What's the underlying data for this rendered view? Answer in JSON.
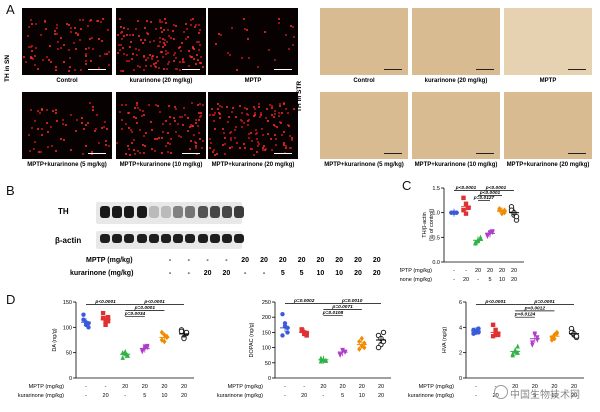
{
  "panel_letters": {
    "a": "A",
    "b": "B",
    "c": "C",
    "d": "D"
  },
  "panelA": {
    "sn_label": "TH in SN",
    "str_label": "TH in STR",
    "sn_captions": [
      "Control",
      "kurarinone (20 mg/kg)",
      "MPTP",
      "MPTP+kurarinone (5 mg/kg)",
      "MPTP+kurarinone (10 mg/kg)",
      "MPTP+kurarinone (20 mg/kg)"
    ],
    "str_captions": [
      "Control",
      "kurarinone (20 mg/kg)",
      "MPTP",
      "MPTP+kurarinone (5 mg/kg)",
      "MPTP+kurarinone (10 mg/kg)",
      "MPTP+kurarinone (20 mg/kg)"
    ]
  },
  "panelB": {
    "bands": [
      "TH",
      "β-actin"
    ],
    "row_labels": [
      "MPTP (mg/kg)",
      "kurarinone (mg/kg)"
    ],
    "mptp": [
      "-",
      "-",
      "-",
      "-",
      "20",
      "20",
      "20",
      "20",
      "20",
      "20",
      "20",
      "20"
    ],
    "kurarinone": [
      "-",
      "-",
      "20",
      "20",
      "-",
      "-",
      "5",
      "5",
      "10",
      "10",
      "20",
      "20"
    ],
    "th_intensity": [
      1,
      1,
      1,
      1,
      0.3,
      0.3,
      0.55,
      0.6,
      0.75,
      0.8,
      0.8,
      0.85
    ]
  },
  "chart_data": [
    {
      "type": "scatter",
      "panel": "C",
      "ylabel": "TH/β-actin\n(% of control)",
      "ylim": [
        0,
        1.5
      ],
      "yticks": [
        "0.0",
        "0.5",
        "1.0",
        "1.5"
      ],
      "mptp_row": [
        "-",
        "-",
        "20",
        "20",
        "20",
        "20"
      ],
      "kurarinone_row": [
        "-",
        "20",
        "-",
        "5",
        "10",
        "20"
      ],
      "groups": [
        {
          "color": "#3b5bdb",
          "marker": "circle",
          "mean": 1.0,
          "points": [
            1.0,
            1.0,
            1.0,
            1.0,
            1.0,
            1.0
          ]
        },
        {
          "color": "#e03131",
          "marker": "square",
          "mean": 1.12,
          "points": [
            1.3,
            1.18,
            1.1,
            1.05,
            0.98,
            1.1
          ]
        },
        {
          "color": "#2fb344",
          "marker": "triangle",
          "mean": 0.44,
          "points": [
            0.4,
            0.45,
            0.5,
            0.38,
            0.43,
            0.47
          ]
        },
        {
          "color": "#ae3ec9",
          "marker": "triangle-down",
          "mean": 0.58,
          "points": [
            0.55,
            0.6,
            0.62,
            0.52,
            0.58,
            0.6
          ]
        },
        {
          "color": "#f08c00",
          "marker": "diamond",
          "mean": 1.03,
          "points": [
            1.05,
            0.98,
            1.0,
            1.08,
            1.02,
            1.05
          ]
        },
        {
          "color": "#222222",
          "marker": "circle-open",
          "mean": 1.0,
          "points": [
            1.12,
            0.95,
            0.85,
            1.05,
            1.0,
            0.92
          ]
        }
      ],
      "annotations": [
        {
          "text": "p<0.0001",
          "from": 0,
          "to": 2,
          "level": 1.45
        },
        {
          "text": "p<0.0001",
          "from": 2,
          "to": 5,
          "level": 1.45
        },
        {
          "text": "p<0.0001",
          "from": 2,
          "to": 4,
          "level": 1.35
        },
        {
          "text": "p=0.0127",
          "from": 2,
          "to": 3,
          "level": 1.25
        }
      ]
    },
    {
      "type": "scatter",
      "panel": "D1",
      "ylabel": "DA (ng/g)",
      "ylim": [
        0,
        150
      ],
      "yticks": [
        "0",
        "50",
        "100",
        "150"
      ],
      "mptp_row": [
        "-",
        "-",
        "20",
        "20",
        "20",
        "20"
      ],
      "kurarinone_row": [
        "-",
        "20",
        "-",
        "5",
        "10",
        "20"
      ],
      "groups": [
        {
          "color": "#3b5bdb",
          "marker": "circle",
          "mean": 110,
          "points": [
            125,
            105,
            100,
            115,
            110,
            108
          ]
        },
        {
          "color": "#e03131",
          "marker": "square",
          "mean": 115,
          "points": [
            128,
            110,
            112,
            118,
            105,
            120
          ]
        },
        {
          "color": "#2fb344",
          "marker": "triangle",
          "mean": 47,
          "points": [
            40,
            52,
            45,
            50,
            48,
            44
          ]
        },
        {
          "color": "#ae3ec9",
          "marker": "triangle-down",
          "mean": 58,
          "points": [
            55,
            62,
            60,
            52,
            58,
            63
          ]
        },
        {
          "color": "#f08c00",
          "marker": "diamond",
          "mean": 80,
          "points": [
            75,
            85,
            80,
            90,
            72,
            82
          ]
        },
        {
          "color": "#222222",
          "marker": "circle-open",
          "mean": 87,
          "points": [
            95,
            80,
            88,
            92,
            78,
            90
          ]
        }
      ],
      "annotations": [
        {
          "text": "p<0.0001",
          "from": 0,
          "to": 2,
          "level": 145
        },
        {
          "text": "p<0.0001",
          "from": 2,
          "to": 5,
          "level": 145
        },
        {
          "text": "p=0.0001",
          "from": 2,
          "to": 4,
          "level": 133
        },
        {
          "text": "p=0.0034",
          "from": 2,
          "to": 3,
          "level": 121
        }
      ]
    },
    {
      "type": "scatter",
      "panel": "D2",
      "ylabel": "DOPAC (ng/g)",
      "ylim": [
        0,
        250
      ],
      "yticks": [
        "0",
        "50",
        "100",
        "150",
        "200",
        "250"
      ],
      "mptp_row": [
        "-",
        "-",
        "20",
        "20",
        "20",
        "20"
      ],
      "kurarinone_row": [
        "-",
        "20",
        "-",
        "5",
        "10",
        "20"
      ],
      "groups": [
        {
          "color": "#3b5bdb",
          "marker": "circle",
          "mean": 165,
          "points": [
            210,
            180,
            150,
            140,
            170,
            165
          ]
        },
        {
          "color": "#e03131",
          "marker": "square",
          "mean": 150,
          "points": [
            160,
            145,
            140,
            155,
            150,
            148
          ]
        },
        {
          "color": "#2fb344",
          "marker": "triangle",
          "mean": 60,
          "points": [
            55,
            62,
            58,
            65,
            60,
            57
          ]
        },
        {
          "color": "#ae3ec9",
          "marker": "triangle-down",
          "mean": 85,
          "points": [
            80,
            90,
            85,
            75,
            92,
            86
          ]
        },
        {
          "color": "#f08c00",
          "marker": "diamond",
          "mean": 110,
          "points": [
            95,
            130,
            100,
            120,
            105,
            115
          ]
        },
        {
          "color": "#222222",
          "marker": "circle-open",
          "mean": 125,
          "points": [
            140,
            110,
            150,
            100,
            130,
            120
          ]
        }
      ],
      "annotations": [
        {
          "text": "p=0.0002",
          "from": 0,
          "to": 2,
          "level": 245
        },
        {
          "text": "p=0.0010",
          "from": 2,
          "to": 5,
          "level": 245
        },
        {
          "text": "p=0.0071",
          "from": 2,
          "to": 4,
          "level": 225
        },
        {
          "text": "p=0.0108",
          "from": 2,
          "to": 3,
          "level": 205
        }
      ]
    },
    {
      "type": "scatter",
      "panel": "D3",
      "ylabel": "HVA (ng/g)",
      "ylim": [
        0,
        6
      ],
      "yticks": [
        "0",
        "2",
        "4",
        "6"
      ],
      "mptp_row": [
        "-",
        "-",
        "20",
        "20",
        "20",
        "20"
      ],
      "kurarinone_row": [
        "-",
        "20",
        "-",
        "5",
        "10",
        "20"
      ],
      "groups": [
        {
          "color": "#3b5bdb",
          "marker": "circle",
          "mean": 3.7,
          "points": [
            3.8,
            3.6,
            3.9,
            3.5,
            3.7,
            3.6
          ]
        },
        {
          "color": "#e03131",
          "marker": "square",
          "mean": 3.6,
          "points": [
            4.2,
            3.4,
            3.5,
            3.3,
            3.8,
            3.4
          ]
        },
        {
          "color": "#2fb344",
          "marker": "triangle",
          "mean": 2.1,
          "points": [
            1.8,
            2.2,
            2.5,
            1.9,
            2.1,
            2.0
          ]
        },
        {
          "color": "#ae3ec9",
          "marker": "triangle-down",
          "mean": 3.1,
          "points": [
            2.8,
            3.4,
            3.0,
            2.6,
            3.5,
            3.2
          ]
        },
        {
          "color": "#f08c00",
          "marker": "diamond",
          "mean": 3.3,
          "points": [
            3.0,
            3.4,
            3.6,
            3.2,
            3.1,
            3.5
          ]
        },
        {
          "color": "#222222",
          "marker": "circle-open",
          "mean": 3.5,
          "points": [
            3.9,
            3.4,
            3.2,
            3.6,
            3.5,
            3.3
          ]
        }
      ],
      "annotations": [
        {
          "text": "p<0.0001",
          "from": 0,
          "to": 2,
          "level": 5.8
        },
        {
          "text": "p=0.0001",
          "from": 2,
          "to": 5,
          "level": 5.8
        },
        {
          "text": "p=0.0012",
          "from": 2,
          "to": 4,
          "level": 5.3
        },
        {
          "text": "p=0.0124",
          "from": 2,
          "to": 3,
          "level": 4.8
        }
      ]
    }
  ],
  "row_labels_short": [
    "MPTP (mg/kg)",
    "kurarinone (mg/kg)"
  ],
  "watermark": "中国生物技术网"
}
